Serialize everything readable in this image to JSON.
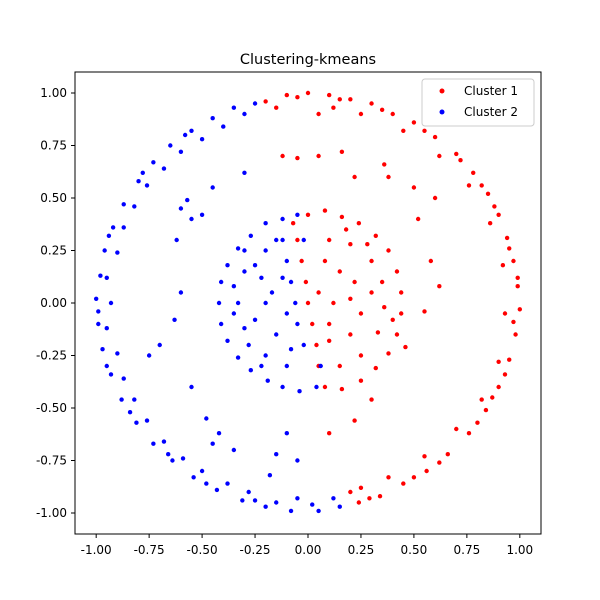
{
  "chart_data": {
    "type": "scatter",
    "title": "Clustering-kmeans",
    "xlabel": "",
    "ylabel": "",
    "xlim": [
      -1.1,
      1.1
    ],
    "ylim": [
      -1.1,
      1.1
    ],
    "xticks": [
      "-1.00",
      "-0.75",
      "-0.50",
      "-0.25",
      "0.00",
      "0.25",
      "0.50",
      "0.75",
      "1.00"
    ],
    "xtick_values": [
      -1.0,
      -0.75,
      -0.5,
      -0.25,
      0.0,
      0.25,
      0.5,
      0.75,
      1.0
    ],
    "yticks": [
      "1.00",
      "0.75",
      "0.50",
      "0.25",
      "0.00",
      "-0.25",
      "-0.50",
      "-0.75",
      "-1.00"
    ],
    "ytick_values": [
      1.0,
      0.75,
      0.5,
      0.25,
      0.0,
      -0.25,
      -0.5,
      -0.75,
      -1.0
    ],
    "grid": false,
    "legend_position": "top-right",
    "series": [
      {
        "name": "Cluster 1",
        "color": "#ff0000",
        "points": [
          [
            -0.2,
            0.96
          ],
          [
            -0.1,
            0.99
          ],
          [
            0.0,
            1.0
          ],
          [
            0.1,
            0.99
          ],
          [
            0.2,
            0.97
          ],
          [
            0.3,
            0.95
          ],
          [
            0.4,
            0.9
          ],
          [
            0.5,
            0.86
          ],
          [
            0.6,
            0.79
          ],
          [
            0.7,
            0.71
          ],
          [
            0.78,
            0.62
          ],
          [
            0.85,
            0.52
          ],
          [
            0.9,
            0.42
          ],
          [
            0.94,
            0.31
          ],
          [
            0.97,
            0.2
          ],
          [
            0.99,
            0.08
          ],
          [
            1.0,
            -0.03
          ],
          [
            0.98,
            -0.15
          ],
          [
            0.95,
            -0.27
          ],
          [
            0.9,
            -0.4
          ],
          [
            0.84,
            -0.51
          ],
          [
            0.76,
            -0.62
          ],
          [
            0.66,
            -0.72
          ],
          [
            0.56,
            -0.8
          ],
          [
            0.45,
            -0.86
          ],
          [
            0.34,
            -0.92
          ],
          [
            0.24,
            -0.95
          ],
          [
            -0.15,
            0.93
          ],
          [
            0.05,
            0.9
          ],
          [
            0.25,
            0.9
          ],
          [
            0.45,
            0.82
          ],
          [
            0.62,
            0.7
          ],
          [
            0.76,
            0.56
          ],
          [
            0.86,
            0.38
          ],
          [
            0.92,
            0.18
          ],
          [
            0.93,
            -0.05
          ],
          [
            0.9,
            -0.28
          ],
          [
            0.82,
            -0.46
          ],
          [
            0.7,
            -0.6
          ],
          [
            0.55,
            -0.73
          ],
          [
            0.38,
            -0.83
          ],
          [
            0.25,
            -0.88
          ],
          [
            -0.05,
            0.98
          ],
          [
            0.15,
            0.97
          ],
          [
            0.35,
            0.92
          ],
          [
            0.55,
            0.82
          ],
          [
            0.72,
            0.68
          ],
          [
            0.82,
            0.56
          ],
          [
            0.88,
            0.46
          ],
          [
            0.95,
            0.26
          ],
          [
            0.99,
            0.12
          ],
          [
            0.97,
            -0.09
          ],
          [
            0.93,
            -0.34
          ],
          [
            0.87,
            -0.45
          ],
          [
            0.8,
            -0.57
          ],
          [
            0.62,
            -0.76
          ],
          [
            0.5,
            -0.83
          ],
          [
            0.29,
            -0.93
          ],
          [
            0.2,
            -0.9
          ],
          [
            0.12,
            0.93
          ],
          [
            0.0,
            0.42
          ],
          [
            0.08,
            0.44
          ],
          [
            0.16,
            0.41
          ],
          [
            0.24,
            0.38
          ],
          [
            0.32,
            0.32
          ],
          [
            0.38,
            0.25
          ],
          [
            0.42,
            0.15
          ],
          [
            0.44,
            0.05
          ],
          [
            0.44,
            -0.05
          ],
          [
            0.42,
            -0.15
          ],
          [
            0.38,
            -0.24
          ],
          [
            0.32,
            -0.31
          ],
          [
            0.25,
            -0.37
          ],
          [
            0.16,
            -0.41
          ],
          [
            0.08,
            -0.4
          ],
          [
            0.05,
            -0.3
          ],
          [
            0.04,
            -0.2
          ],
          [
            0.02,
            -0.1
          ],
          [
            0.0,
            0.0
          ],
          [
            -0.01,
            0.1
          ],
          [
            -0.03,
            0.2
          ],
          [
            -0.05,
            0.3
          ],
          [
            -0.07,
            0.38
          ],
          [
            0.1,
            0.3
          ],
          [
            0.2,
            0.28
          ],
          [
            0.3,
            0.2
          ],
          [
            0.35,
            0.1
          ],
          [
            0.36,
            -0.02
          ],
          [
            0.33,
            -0.14
          ],
          [
            0.25,
            -0.25
          ],
          [
            0.15,
            -0.3
          ],
          [
            0.1,
            -0.18
          ],
          [
            0.12,
            0.0
          ],
          [
            0.15,
            0.15
          ],
          [
            0.22,
            0.1
          ],
          [
            0.25,
            -0.05
          ],
          [
            0.2,
            -0.15
          ],
          [
            0.08,
            0.2
          ],
          [
            0.18,
            0.35
          ],
          [
            0.3,
            0.05
          ],
          [
            0.4,
            -0.08
          ],
          [
            0.05,
            0.05
          ],
          [
            0.28,
            0.28
          ],
          [
            0.1,
            -0.1
          ],
          [
            0.2,
            0.02
          ],
          [
            -0.12,
            0.7
          ],
          [
            -0.05,
            0.69
          ],
          [
            0.05,
            0.7
          ],
          [
            0.22,
            0.6
          ],
          [
            0.38,
            0.6
          ],
          [
            0.52,
            0.4
          ],
          [
            0.58,
            0.2
          ],
          [
            0.62,
            0.08
          ],
          [
            0.55,
            -0.04
          ],
          [
            0.46,
            -0.21
          ],
          [
            0.3,
            -0.46
          ],
          [
            0.22,
            -0.56
          ],
          [
            0.1,
            -0.62
          ],
          [
            0.5,
            0.55
          ],
          [
            0.6,
            0.5
          ],
          [
            0.36,
            0.66
          ],
          [
            0.16,
            0.72
          ]
        ]
      },
      {
        "name": "Cluster 2",
        "color": "#0000ff",
        "points": [
          [
            -0.25,
            0.95
          ],
          [
            -0.35,
            0.93
          ],
          [
            -0.45,
            0.88
          ],
          [
            -0.55,
            0.82
          ],
          [
            -0.65,
            0.75
          ],
          [
            -0.73,
            0.67
          ],
          [
            -0.8,
            0.58
          ],
          [
            -0.87,
            0.47
          ],
          [
            -0.92,
            0.36
          ],
          [
            -0.96,
            0.25
          ],
          [
            -0.98,
            0.13
          ],
          [
            -1.0,
            0.02
          ],
          [
            -0.99,
            -0.1
          ],
          [
            -0.97,
            -0.22
          ],
          [
            -0.93,
            -0.34
          ],
          [
            -0.88,
            -0.46
          ],
          [
            -0.81,
            -0.57
          ],
          [
            -0.73,
            -0.67
          ],
          [
            -0.64,
            -0.75
          ],
          [
            -0.54,
            -0.83
          ],
          [
            -0.43,
            -0.89
          ],
          [
            -0.31,
            -0.94
          ],
          [
            -0.2,
            -0.97
          ],
          [
            -0.08,
            -0.99
          ],
          [
            0.05,
            -0.99
          ],
          [
            0.15,
            -0.97
          ],
          [
            -0.3,
            0.9
          ],
          [
            -0.5,
            0.78
          ],
          [
            -0.68,
            0.64
          ],
          [
            -0.82,
            0.46
          ],
          [
            -0.9,
            0.24
          ],
          [
            -0.93,
            0.0
          ],
          [
            -0.9,
            -0.24
          ],
          [
            -0.82,
            -0.46
          ],
          [
            -0.68,
            -0.66
          ],
          [
            -0.5,
            -0.8
          ],
          [
            -0.28,
            -0.9
          ],
          [
            -0.05,
            -0.93
          ],
          [
            0.12,
            -0.93
          ],
          [
            -0.4,
            0.84
          ],
          [
            -0.6,
            0.72
          ],
          [
            -0.76,
            0.56
          ],
          [
            -0.87,
            0.36
          ],
          [
            -0.95,
            0.12
          ],
          [
            -0.95,
            -0.12
          ],
          [
            -0.87,
            -0.36
          ],
          [
            -0.76,
            -0.56
          ],
          [
            -0.59,
            -0.74
          ],
          [
            -0.38,
            -0.86
          ],
          [
            -0.15,
            -0.95
          ],
          [
            0.02,
            -0.96
          ],
          [
            -0.58,
            0.8
          ],
          [
            -0.78,
            0.62
          ],
          [
            -0.94,
            0.32
          ],
          [
            -0.99,
            -0.04
          ],
          [
            -0.95,
            -0.3
          ],
          [
            -0.84,
            -0.52
          ],
          [
            -0.66,
            -0.72
          ],
          [
            -0.48,
            -0.86
          ],
          [
            -0.25,
            -0.94
          ],
          [
            -0.05,
            0.42
          ],
          [
            -0.12,
            0.4
          ],
          [
            -0.2,
            0.38
          ],
          [
            -0.27,
            0.32
          ],
          [
            -0.33,
            0.26
          ],
          [
            -0.38,
            0.18
          ],
          [
            -0.41,
            0.1
          ],
          [
            -0.42,
            0.0
          ],
          [
            -0.41,
            -0.1
          ],
          [
            -0.38,
            -0.18
          ],
          [
            -0.33,
            -0.26
          ],
          [
            -0.27,
            -0.32
          ],
          [
            -0.19,
            -0.37
          ],
          [
            -0.12,
            -0.4
          ],
          [
            -0.04,
            -0.42
          ],
          [
            0.04,
            -0.4
          ],
          [
            0.06,
            -0.3
          ],
          [
            -0.02,
            -0.2
          ],
          [
            -0.05,
            -0.1
          ],
          [
            -0.06,
            0.0
          ],
          [
            -0.08,
            0.1
          ],
          [
            -0.1,
            0.2
          ],
          [
            -0.12,
            0.3
          ],
          [
            -0.2,
            0.25
          ],
          [
            -0.3,
            0.15
          ],
          [
            -0.33,
            0.0
          ],
          [
            -0.3,
            -0.12
          ],
          [
            -0.2,
            -0.25
          ],
          [
            -0.1,
            -0.3
          ],
          [
            -0.15,
            -0.15
          ],
          [
            -0.2,
            0.0
          ],
          [
            -0.22,
            0.12
          ],
          [
            -0.12,
            0.12
          ],
          [
            -0.25,
            -0.08
          ],
          [
            -0.08,
            -0.22
          ],
          [
            -0.3,
            0.25
          ],
          [
            -0.15,
            0.3
          ],
          [
            -0.35,
            0.08
          ],
          [
            -0.28,
            -0.2
          ],
          [
            -0.17,
            0.05
          ],
          [
            -0.1,
            -0.05
          ],
          [
            -0.22,
            -0.3
          ],
          [
            -0.02,
            0.3
          ],
          [
            -0.25,
            0.18
          ],
          [
            -0.35,
            -0.05
          ],
          [
            -0.6,
            0.45
          ],
          [
            -0.62,
            0.3
          ],
          [
            -0.55,
            0.4
          ],
          [
            -0.5,
            0.42
          ],
          [
            -0.6,
            0.05
          ],
          [
            -0.63,
            -0.08
          ],
          [
            -0.7,
            -0.2
          ],
          [
            -0.75,
            -0.25
          ],
          [
            -0.55,
            -0.4
          ],
          [
            -0.48,
            -0.55
          ],
          [
            -0.42,
            -0.62
          ],
          [
            -0.45,
            -0.67
          ],
          [
            -0.35,
            -0.7
          ],
          [
            -0.1,
            -0.62
          ],
          [
            -0.15,
            -0.72
          ],
          [
            -0.05,
            -0.75
          ],
          [
            -0.18,
            -0.82
          ],
          [
            -0.3,
            0.62
          ],
          [
            -0.45,
            0.55
          ],
          [
            -0.57,
            0.49
          ]
        ]
      }
    ]
  }
}
